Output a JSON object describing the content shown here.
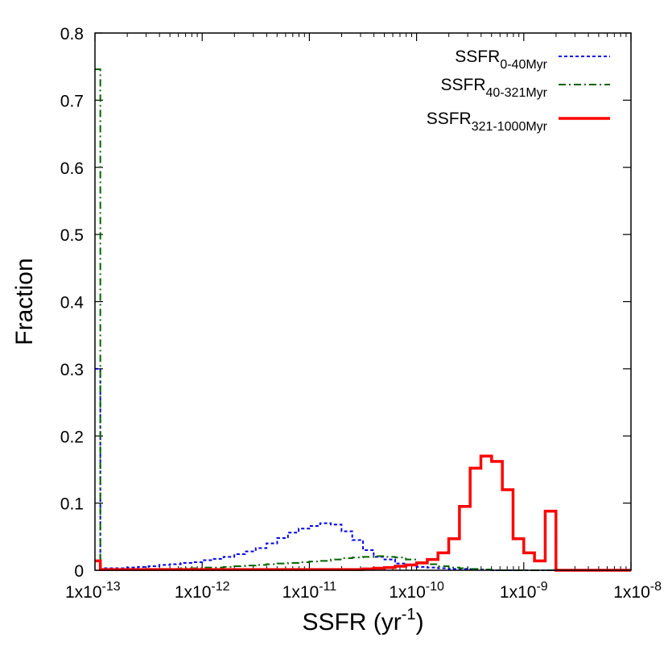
{
  "chart_data": {
    "type": "line",
    "style": "step-histogram",
    "xlabel": "SSFR (yr",
    "xlabel_superscript": "-1",
    "xlabel_close": ")",
    "ylabel": "Fraction",
    "xscale": "log",
    "xlim": [
      1e-13,
      1e-08
    ],
    "ylim": [
      0,
      0.8
    ],
    "grid": false,
    "legend_position": "top-right",
    "xticks": [
      {
        "value": 1e-13,
        "base": "1x10",
        "exp": "-13"
      },
      {
        "value": 1e-12,
        "base": "1x10",
        "exp": "-12"
      },
      {
        "value": 1e-11,
        "base": "1x10",
        "exp": "-11"
      },
      {
        "value": 1e-10,
        "base": "1x10",
        "exp": "-10"
      },
      {
        "value": 1e-09,
        "base": "1x10",
        "exp": "-9"
      },
      {
        "value": 1e-08,
        "base": "1x10",
        "exp": "-8"
      }
    ],
    "yticks": [
      {
        "value": 0,
        "label": "0"
      },
      {
        "value": 0.1,
        "label": "0.1"
      },
      {
        "value": 0.2,
        "label": "0.2"
      },
      {
        "value": 0.3,
        "label": "0.3"
      },
      {
        "value": 0.4,
        "label": "0.4"
      },
      {
        "value": 0.5,
        "label": "0.5"
      },
      {
        "value": 0.6,
        "label": "0.6"
      },
      {
        "value": 0.7,
        "label": "0.7"
      },
      {
        "value": 0.8,
        "label": "0.8"
      }
    ],
    "series": [
      {
        "key": "ssfr-0-40",
        "name": "SSFR",
        "name_sub": "0-40Myr",
        "color": "#0000ee",
        "dash": "4,3",
        "width": 2,
        "bin_edges": [
          -13,
          -12.9,
          -12.8,
          -12.7,
          -12.6,
          -12.5,
          -12.4,
          -12.3,
          -12.2,
          -12.1,
          -12,
          -11.9,
          -11.8,
          -11.7,
          -11.6,
          -11.5,
          -11.4,
          -11.3,
          -11.2,
          -11.1,
          -11,
          -10.9,
          -10.8,
          -10.7,
          -10.6,
          -10.5,
          -10.4,
          -10.3,
          -10.2,
          -10.1,
          -10,
          -9.9,
          -9.8,
          -9.7,
          -9.6,
          -9.5,
          -9.4,
          -9.3,
          -9.2,
          -9.1,
          -9,
          -8.9,
          -8.8,
          -8.7,
          -8.6,
          -8.5,
          -8.4,
          -8.3,
          -8.2,
          -8.1,
          -8
        ],
        "values": [
          0.3,
          0.003,
          0.003,
          0.004,
          0.005,
          0.006,
          0.008,
          0.009,
          0.011,
          0.012,
          0.015,
          0.017,
          0.02,
          0.024,
          0.028,
          0.033,
          0.04,
          0.048,
          0.056,
          0.062,
          0.066,
          0.07,
          0.068,
          0.058,
          0.045,
          0.03,
          0.02,
          0.016,
          0.01,
          0.007,
          0.005,
          0.004,
          0.003,
          0.002,
          0.002,
          0.001,
          0.001,
          0.0,
          0.0,
          0.0,
          0.0,
          0.0,
          0.0,
          0.0,
          0.0,
          0.0,
          0.0,
          0.0,
          0.0,
          0.0
        ]
      },
      {
        "key": "ssfr-40-321",
        "name": "SSFR",
        "name_sub": "40-321Myr",
        "color": "#006400",
        "dash": "9,4,2,4",
        "width": 2,
        "bin_edges": [
          -13,
          -12.9,
          -12.8,
          -12.7,
          -12.6,
          -12.5,
          -12.4,
          -12.3,
          -12.2,
          -12.1,
          -12,
          -11.9,
          -11.8,
          -11.7,
          -11.6,
          -11.5,
          -11.4,
          -11.3,
          -11.2,
          -11.1,
          -11,
          -10.9,
          -10.8,
          -10.7,
          -10.6,
          -10.5,
          -10.4,
          -10.3,
          -10.2,
          -10.1,
          -10,
          -9.9,
          -9.8,
          -9.7,
          -9.6,
          -9.5,
          -9.4,
          -9.3,
          -9.2,
          -9.1,
          -9,
          -8.9,
          -8.8,
          -8.7,
          -8.6,
          -8.5,
          -8.4,
          -8.3,
          -8.2,
          -8.1,
          -8
        ],
        "values": [
          0.746,
          0.001,
          0.001,
          0.001,
          0.001,
          0.002,
          0.002,
          0.002,
          0.003,
          0.003,
          0.004,
          0.004,
          0.005,
          0.006,
          0.007,
          0.008,
          0.009,
          0.01,
          0.011,
          0.012,
          0.013,
          0.014,
          0.016,
          0.018,
          0.019,
          0.02,
          0.021,
          0.02,
          0.019,
          0.016,
          0.012,
          0.009,
          0.006,
          0.004,
          0.003,
          0.002,
          0.001,
          0.0,
          0.0,
          0.0,
          0.0,
          0.0,
          0.0,
          0.0,
          0.0,
          0.0,
          0.0,
          0.0,
          0.0,
          0.0
        ]
      },
      {
        "key": "ssfr-321-1000",
        "name": "SSFR",
        "name_sub": "321-1000Myr",
        "color": "#ff0000",
        "dash": "",
        "width": 3.5,
        "bin_edges": [
          -13,
          -12.9,
          -12.8,
          -12.7,
          -12.6,
          -12.5,
          -12.4,
          -12.3,
          -12.2,
          -12.1,
          -12,
          -11.9,
          -11.8,
          -11.7,
          -11.6,
          -11.5,
          -11.4,
          -11.3,
          -11.2,
          -11.1,
          -11,
          -10.9,
          -10.8,
          -10.7,
          -10.6,
          -10.5,
          -10.4,
          -10.3,
          -10.2,
          -10.1,
          -10,
          -9.9,
          -9.8,
          -9.7,
          -9.6,
          -9.5,
          -9.4,
          -9.3,
          -9.2,
          -9.1,
          -9,
          -8.9,
          -8.8,
          -8.7,
          -8.6,
          -8.5,
          -8.4,
          -8.3,
          -8.2,
          -8.1,
          -8
        ],
        "values": [
          0.014,
          0.001,
          0.001,
          0.001,
          0.001,
          0.001,
          0.001,
          0.001,
          0.001,
          0.001,
          0.001,
          0.001,
          0.001,
          0.001,
          0.001,
          0.001,
          0.001,
          0.001,
          0.001,
          0.001,
          0.001,
          0.001,
          0.001,
          0.001,
          0.001,
          0.002,
          0.003,
          0.004,
          0.006,
          0.008,
          0.011,
          0.016,
          0.026,
          0.047,
          0.095,
          0.152,
          0.17,
          0.162,
          0.12,
          0.047,
          0.026,
          0.014,
          0.088,
          0.0,
          0.0,
          0.0,
          0.0,
          0.0,
          0.0,
          0.0
        ]
      }
    ]
  }
}
